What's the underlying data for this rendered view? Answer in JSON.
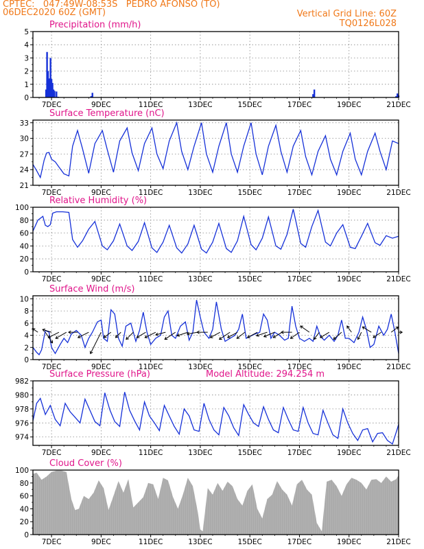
{
  "header": {
    "station_line": "CPTEC:   047:49W-08:53S   PEDRO AFONSO (TO)",
    "date_line": "06DEC2020 60Z (GMT)",
    "grid_note": "Vertical Grid Line: 60Z",
    "code": "TQ0126L028"
  },
  "colors": {
    "header": "#f07818",
    "title": "#e0158a",
    "series": "#1530d8",
    "cloud": "#a8a8a8",
    "arrow": "#000000"
  },
  "x_axis": {
    "start_day": 6.25,
    "end_day": 21.0,
    "tick_days": [
      7,
      9,
      11,
      13,
      15,
      17,
      19,
      21
    ],
    "tick_labels": [
      "7DEC",
      "9DEC",
      "11DEC",
      "13DEC",
      "15DEC",
      "17DEC",
      "19DEC",
      "21DEC"
    ]
  },
  "chart_data": [
    {
      "id": "precip",
      "type": "bar",
      "title": "Precipitation (mm/h)",
      "ylim": [
        0,
        5
      ],
      "yticks": [
        0,
        1,
        2,
        3,
        4,
        5
      ],
      "grid": true,
      "bars": [
        [
          6.78,
          0.6
        ],
        [
          6.82,
          3.45
        ],
        [
          6.86,
          2.0
        ],
        [
          6.9,
          1.4
        ],
        [
          6.93,
          1.45
        ],
        [
          6.96,
          3.0
        ],
        [
          7.0,
          1.4
        ],
        [
          7.04,
          1.1
        ],
        [
          7.08,
          0.6
        ],
        [
          7.12,
          0.5
        ],
        [
          7.2,
          0.45
        ],
        [
          7.27,
          0.05
        ],
        [
          8.6,
          0.1
        ],
        [
          8.65,
          0.35
        ],
        [
          17.55,
          0.25
        ],
        [
          17.6,
          0.6
        ],
        [
          20.9,
          0.1
        ],
        [
          20.95,
          0.3
        ],
        [
          21.0,
          0.15
        ]
      ]
    },
    {
      "id": "temp",
      "type": "line",
      "title": "Surface Temperature (nC)",
      "ylim": [
        21,
        33.5
      ],
      "yticks": [
        21,
        24,
        27,
        30,
        33
      ],
      "grid": true,
      "x": [
        6.25,
        6.4,
        6.55,
        6.7,
        6.8,
        6.9,
        7.0,
        7.15,
        7.3,
        7.5,
        7.7,
        7.85,
        8.05,
        8.25,
        8.5,
        8.75,
        9.05,
        9.25,
        9.5,
        9.75,
        10.05,
        10.25,
        10.5,
        10.75,
        11.05,
        11.25,
        11.5,
        11.75,
        12.05,
        12.25,
        12.5,
        12.75,
        13.05,
        13.25,
        13.5,
        13.75,
        14.05,
        14.25,
        14.5,
        14.75,
        15.05,
        15.25,
        15.5,
        15.75,
        16.05,
        16.25,
        16.5,
        16.75,
        17.05,
        17.25,
        17.5,
        17.75,
        18.05,
        18.25,
        18.5,
        18.75,
        19.05,
        19.25,
        19.5,
        19.75,
        20.05,
        20.25,
        20.5,
        20.75,
        21.0
      ],
      "y": [
        25.0,
        23.8,
        22.5,
        25.8,
        27.2,
        27.3,
        26.0,
        25.5,
        24.5,
        23.2,
        22.8,
        28.5,
        31.5,
        28.0,
        23.3,
        29.0,
        31.5,
        27.8,
        23.5,
        29.5,
        32.0,
        27.2,
        23.8,
        29.0,
        32.0,
        27.0,
        24.2,
        29.5,
        33.0,
        27.5,
        24.0,
        28.5,
        33.0,
        27.0,
        23.5,
        28.5,
        33.0,
        27.0,
        23.5,
        28.5,
        33.0,
        27.0,
        23.0,
        28.5,
        32.5,
        27.5,
        23.5,
        28.5,
        31.5,
        26.5,
        23.0,
        27.5,
        30.5,
        26.0,
        23.0,
        27.5,
        31.0,
        26.0,
        23.0,
        27.5,
        31.0,
        27.5,
        24.0,
        29.5,
        29.0
      ]
    },
    {
      "id": "rh",
      "type": "line",
      "title": "Relative Humidity (%)",
      "ylim": [
        0,
        100
      ],
      "yticks": [
        0,
        20,
        40,
        60,
        80,
        100
      ],
      "grid": true,
      "x": [
        6.25,
        6.45,
        6.65,
        6.75,
        6.85,
        6.95,
        7.05,
        7.2,
        7.45,
        7.7,
        7.85,
        8.05,
        8.25,
        8.5,
        8.75,
        9.05,
        9.25,
        9.5,
        9.75,
        10.05,
        10.25,
        10.5,
        10.75,
        11.05,
        11.25,
        11.5,
        11.75,
        12.05,
        12.25,
        12.5,
        12.75,
        13.05,
        13.25,
        13.5,
        13.75,
        14.05,
        14.25,
        14.5,
        14.75,
        15.05,
        15.25,
        15.5,
        15.75,
        16.05,
        16.25,
        16.5,
        16.75,
        17.05,
        17.25,
        17.5,
        17.75,
        18.05,
        18.25,
        18.5,
        18.75,
        19.05,
        19.25,
        19.5,
        19.75,
        20.05,
        20.25,
        20.5,
        20.75,
        21.0
      ],
      "y": [
        63,
        80,
        86,
        72,
        70,
        73,
        91,
        93,
        93,
        92,
        50,
        38,
        48,
        66,
        78,
        40,
        34,
        48,
        74,
        40,
        33,
        47,
        76,
        37,
        30,
        46,
        72,
        37,
        29,
        43,
        72,
        35,
        29,
        46,
        75,
        36,
        30,
        48,
        86,
        42,
        34,
        52,
        85,
        40,
        35,
        58,
        97,
        44,
        38,
        70,
        95,
        46,
        40,
        60,
        73,
        38,
        36,
        55,
        75,
        45,
        41,
        56,
        52,
        55
      ]
    },
    {
      "id": "wind",
      "type": "line",
      "title": "Surface Wind (m/s)",
      "ylim": [
        0,
        10.5
      ],
      "yticks": [
        0,
        2,
        4,
        6,
        8,
        10
      ],
      "grid": true,
      "x": [
        6.25,
        6.4,
        6.5,
        6.6,
        6.75,
        6.9,
        7.0,
        7.15,
        7.35,
        7.5,
        7.65,
        7.8,
        8.0,
        8.2,
        8.35,
        8.5,
        8.65,
        8.85,
        9.0,
        9.1,
        9.25,
        9.4,
        9.55,
        9.7,
        9.85,
        10.0,
        10.2,
        10.4,
        10.55,
        10.7,
        10.85,
        11.0,
        11.2,
        11.4,
        11.55,
        11.7,
        11.85,
        12.0,
        12.2,
        12.4,
        12.55,
        12.7,
        12.85,
        13.0,
        13.15,
        13.35,
        13.5,
        13.65,
        13.85,
        14.0,
        14.2,
        14.4,
        14.55,
        14.7,
        14.85,
        15.0,
        15.2,
        15.4,
        15.55,
        15.7,
        15.85,
        16.0,
        16.2,
        16.4,
        16.55,
        16.7,
        16.85,
        17.0,
        17.2,
        17.4,
        17.55,
        17.7,
        17.85,
        18.0,
        18.2,
        18.4,
        18.55,
        18.7,
        18.85,
        19.0,
        19.2,
        19.4,
        19.55,
        19.7,
        19.85,
        20.0,
        20.2,
        20.4,
        20.55,
        20.7,
        20.85,
        21.0
      ],
      "y": [
        2.0,
        1.2,
        0.8,
        1.6,
        4.8,
        4.5,
        2.0,
        1.0,
        2.5,
        3.5,
        2.8,
        4.2,
        4.8,
        4.0,
        2.0,
        3.5,
        4.5,
        6.2,
        6.5,
        3.5,
        3.0,
        8.2,
        7.5,
        3.5,
        2.2,
        5.5,
        6.0,
        3.0,
        4.8,
        7.8,
        4.5,
        2.5,
        3.5,
        4.0,
        7.0,
        8.0,
        4.0,
        3.5,
        5.5,
        6.2,
        3.2,
        4.5,
        9.8,
        7.0,
        4.5,
        3.5,
        5.0,
        9.5,
        5.0,
        3.0,
        3.5,
        4.0,
        5.0,
        7.5,
        3.5,
        3.8,
        4.2,
        4.5,
        7.5,
        6.5,
        3.5,
        4.5,
        4.0,
        3.2,
        3.5,
        8.8,
        5.5,
        3.5,
        3.0,
        3.5,
        3.0,
        5.5,
        3.8,
        3.2,
        4.0,
        3.0,
        4.0,
        6.5,
        3.5,
        3.5,
        2.8,
        4.5,
        7.0,
        5.0,
        2.0,
        2.5,
        5.5,
        4.0,
        5.0,
        7.5,
        4.5,
        1.0
      ]
    },
    {
      "id": "pressure",
      "type": "line",
      "title": "Surface Pressure (hPa)",
      "annotation": "Model Altitude: 294.254  m",
      "ylim": [
        972.8,
        982
      ],
      "yticks": [
        974,
        976,
        978,
        980,
        982
      ],
      "grid": true,
      "x": [
        6.25,
        6.4,
        6.55,
        6.75,
        6.95,
        7.15,
        7.35,
        7.55,
        7.75,
        7.95,
        8.15,
        8.35,
        8.55,
        8.75,
        8.95,
        9.15,
        9.35,
        9.55,
        9.75,
        9.95,
        10.15,
        10.35,
        10.55,
        10.75,
        10.95,
        11.15,
        11.35,
        11.55,
        11.75,
        11.95,
        12.15,
        12.35,
        12.55,
        12.75,
        12.95,
        13.15,
        13.35,
        13.55,
        13.75,
        13.95,
        14.15,
        14.35,
        14.55,
        14.75,
        14.95,
        15.15,
        15.35,
        15.55,
        15.75,
        15.95,
        16.15,
        16.35,
        16.55,
        16.75,
        16.95,
        17.15,
        17.35,
        17.55,
        17.75,
        17.95,
        18.15,
        18.35,
        18.55,
        18.75,
        18.95,
        19.15,
        19.35,
        19.55,
        19.75,
        19.95,
        20.15,
        20.35,
        20.55,
        20.75,
        20.95,
        21.0
      ],
      "y": [
        976.3,
        978.8,
        979.5,
        977.2,
        978.5,
        976.5,
        975.6,
        978.8,
        977.6,
        976.8,
        976.0,
        979.4,
        977.8,
        976.2,
        975.6,
        980.3,
        977.9,
        976.2,
        975.5,
        980.4,
        977.8,
        976.3,
        975.0,
        979.0,
        977.0,
        976.0,
        974.9,
        978.5,
        977.0,
        975.5,
        974.4,
        978.0,
        977.0,
        975.0,
        974.8,
        978.8,
        976.5,
        975.0,
        974.3,
        978.2,
        977.0,
        975.3,
        974.2,
        978.6,
        977.2,
        976.0,
        975.5,
        978.3,
        976.5,
        975.0,
        974.6,
        978.2,
        976.5,
        975.0,
        974.8,
        978.2,
        976.0,
        974.5,
        974.3,
        977.8,
        976.0,
        974.3,
        973.8,
        978.0,
        976.0,
        974.5,
        973.5,
        975.0,
        975.2,
        973.3,
        974.5,
        974.6,
        973.5,
        973.0,
        975.2,
        975.8
      ]
    },
    {
      "id": "cloud",
      "type": "area",
      "title": "Cloud Cover (%)",
      "ylim": [
        0,
        100
      ],
      "yticks": [
        0,
        20,
        40,
        60,
        80,
        100
      ],
      "grid": false,
      "x": [
        6.25,
        6.4,
        6.6,
        6.8,
        7.0,
        7.2,
        7.4,
        7.6,
        7.8,
        7.95,
        8.1,
        8.3,
        8.5,
        8.7,
        8.9,
        9.1,
        9.3,
        9.5,
        9.7,
        9.9,
        10.1,
        10.3,
        10.5,
        10.7,
        10.9,
        11.1,
        11.3,
        11.5,
        11.7,
        11.9,
        12.1,
        12.3,
        12.5,
        12.7,
        12.9,
        13.0,
        13.1,
        13.3,
        13.5,
        13.7,
        13.9,
        14.1,
        14.3,
        14.5,
        14.7,
        14.9,
        15.1,
        15.3,
        15.5,
        15.7,
        15.9,
        16.1,
        16.3,
        16.5,
        16.7,
        16.9,
        17.1,
        17.3,
        17.5,
        17.7,
        17.9,
        18.1,
        18.3,
        18.5,
        18.7,
        18.9,
        19.1,
        19.3,
        19.5,
        19.7,
        19.9,
        20.1,
        20.3,
        20.5,
        20.7,
        20.9,
        21.0
      ],
      "y": [
        94,
        96,
        85,
        90,
        97,
        99,
        99,
        97,
        55,
        38,
        40,
        60,
        55,
        65,
        84,
        72,
        38,
        60,
        83,
        65,
        86,
        42,
        50,
        58,
        80,
        78,
        55,
        88,
        84,
        58,
        40,
        62,
        88,
        75,
        35,
        8,
        5,
        72,
        62,
        80,
        68,
        82,
        75,
        55,
        45,
        68,
        78,
        40,
        25,
        55,
        62,
        83,
        70,
        62,
        45,
        78,
        85,
        70,
        62,
        18,
        5,
        82,
        85,
        75,
        60,
        78,
        88,
        85,
        80,
        70,
        85,
        86,
        80,
        90,
        82,
        86,
        92
      ]
    },
    {
      "id": "wind_vectors",
      "type": "scatter",
      "x": [
        6.25,
        6.45,
        6.75,
        7.0,
        7.3,
        7.6,
        8.05,
        8.5,
        9.0,
        9.4,
        9.8,
        10.3,
        10.8,
        11.2,
        11.6,
        12.0,
        12.5,
        12.9,
        13.3,
        13.8,
        14.2,
        14.5,
        14.8,
        15.3,
        15.7,
        16.0,
        16.3,
        16.7,
        17.0,
        17.4,
        17.8,
        18.2,
        18.7,
        19.1,
        19.5,
        19.9,
        20.3,
        20.7,
        21.0
      ],
      "u": [
        0.0,
        -0.6,
        0.8,
        -1.0,
        -1.2,
        -1.2,
        -1.0,
        -1.2,
        -1.2,
        -0.8,
        -0.6,
        -0.8,
        -1.0,
        -1.2,
        -1.1,
        -1.2,
        -1.2,
        -1.2,
        -1.2,
        -1.1,
        -1.2,
        -1.1,
        -0.9,
        -1.1,
        -1.2,
        -1.2,
        -1.0,
        -1.2,
        -1.0,
        -1.0,
        -0.6,
        -1.0,
        -0.9,
        -0.5,
        -0.4,
        -1.0,
        -0.9,
        0.8,
        0.4
      ],
      "v": [
        0.0,
        0.4,
        -1.2,
        0.3,
        -0.6,
        -0.7,
        0.0,
        -0.6,
        -2.4,
        -0.6,
        -0.6,
        -0.8,
        -0.6,
        -0.6,
        -0.3,
        -0.8,
        -0.4,
        -0.2,
        0.0,
        -0.6,
        -0.8,
        -0.6,
        -0.7,
        -0.6,
        -0.4,
        -0.5,
        -0.6,
        0.0,
        -0.7,
        0.7,
        -0.8,
        -0.6,
        -0.8,
        0.7,
        -0.8,
        0.6,
        -0.6,
        0.6,
        0.0
      ]
    }
  ]
}
